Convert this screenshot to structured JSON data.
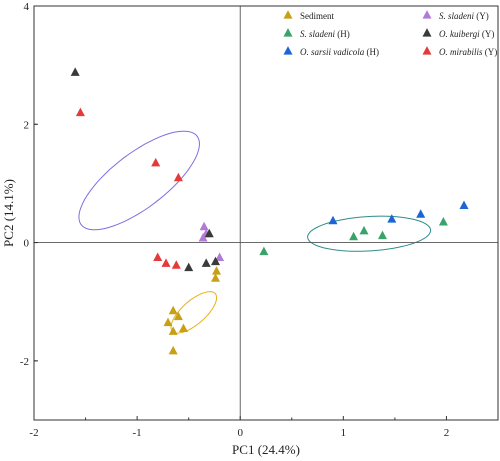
{
  "chart_data": {
    "type": "scatter",
    "xlabel": "PC1 (24.4%)",
    "ylabel": "PC2 (14.1%)",
    "xlim": [
      -2,
      2.5
    ],
    "ylim": [
      -3,
      4
    ],
    "x_ticks": [
      "-2",
      "-1",
      "0",
      "1",
      "2"
    ],
    "y_ticks": [
      "-2",
      "0",
      "2",
      "4"
    ],
    "reference_lines": {
      "x": 0,
      "y": 0
    },
    "legend_position": "top-right",
    "series": [
      {
        "name": "Sediment",
        "name_parts": [
          {
            "text": "Sediment",
            "italic": false
          }
        ],
        "color": "#c8a016",
        "points": [
          {
            "x": -0.65,
            "y": -1.15
          },
          {
            "x": -0.6,
            "y": -1.25
          },
          {
            "x": -0.55,
            "y": -1.45
          },
          {
            "x": -0.65,
            "y": -1.5
          },
          {
            "x": -0.7,
            "y": -1.35
          },
          {
            "x": -0.65,
            "y": -1.83
          },
          {
            "x": -0.23,
            "y": -0.48
          },
          {
            "x": -0.24,
            "y": -0.6
          }
        ]
      },
      {
        "name": "S. sladeni (H)",
        "name_parts": [
          {
            "text": "S. sladeni",
            "italic": true
          },
          {
            "text": " (H)",
            "italic": false
          }
        ],
        "color": "#3aa36b",
        "points": [
          {
            "x": 0.23,
            "y": -0.15
          },
          {
            "x": 1.1,
            "y": 0.1
          },
          {
            "x": 1.2,
            "y": 0.2
          },
          {
            "x": 1.38,
            "y": 0.12
          },
          {
            "x": 1.97,
            "y": 0.35
          }
        ]
      },
      {
        "name": "O. sarsii vadicola (H)",
        "name_parts": [
          {
            "text": "O. sarsii vadicola",
            "italic": true
          },
          {
            "text": " (H)",
            "italic": false
          }
        ],
        "color": "#1c66d4",
        "points": [
          {
            "x": 0.9,
            "y": 0.37
          },
          {
            "x": 1.47,
            "y": 0.4
          },
          {
            "x": 1.75,
            "y": 0.48
          },
          {
            "x": 2.17,
            "y": 0.63
          }
        ]
      },
      {
        "name": "S. sladeni (Y)",
        "name_parts": [
          {
            "text": "S. sladeni",
            "italic": true
          },
          {
            "text": " (Y)",
            "italic": false
          }
        ],
        "color": "#b07ad6",
        "points": [
          {
            "x": -0.35,
            "y": 0.27
          },
          {
            "x": -0.33,
            "y": 0.15
          },
          {
            "x": -0.36,
            "y": 0.08
          },
          {
            "x": -0.2,
            "y": -0.25
          }
        ]
      },
      {
        "name": "O. kuibergi (Y)",
        "name_parts": [
          {
            "text": "O. kuibergi",
            "italic": true
          },
          {
            "text": " (Y)",
            "italic": false
          }
        ],
        "color": "#3a3a3a",
        "points": [
          {
            "x": -1.6,
            "y": 2.88
          },
          {
            "x": -0.3,
            "y": 0.15
          },
          {
            "x": -0.5,
            "y": -0.42
          },
          {
            "x": -0.33,
            "y": -0.35
          },
          {
            "x": -0.24,
            "y": -0.32
          }
        ]
      },
      {
        "name": "O. mirabilis (Y)",
        "name_parts": [
          {
            "text": "O. mirabilis",
            "italic": true
          },
          {
            "text": " (Y)",
            "italic": false
          }
        ],
        "color": "#e53a3a",
        "points": [
          {
            "x": -1.55,
            "y": 2.2
          },
          {
            "x": -0.82,
            "y": 1.35
          },
          {
            "x": -0.6,
            "y": 1.1
          },
          {
            "x": -0.8,
            "y": -0.25
          },
          {
            "x": -0.72,
            "y": -0.35
          },
          {
            "x": -0.62,
            "y": -0.38
          }
        ]
      }
    ],
    "ellipses": [
      {
        "color": "#7e6ee0",
        "cx": -0.98,
        "cy": 1.05,
        "rx": 1.92,
        "ry": 0.68,
        "angle_deg": 58
      },
      {
        "color": "#e8b21a",
        "cx": -0.45,
        "cy": -1.18,
        "rx": 0.78,
        "ry": 0.28,
        "angle_deg": 62
      },
      {
        "color": "#2e8c8c",
        "cx": 1.25,
        "cy": 0.15,
        "rx": 1.2,
        "ry": 0.58,
        "angle_deg": 7
      }
    ]
  }
}
